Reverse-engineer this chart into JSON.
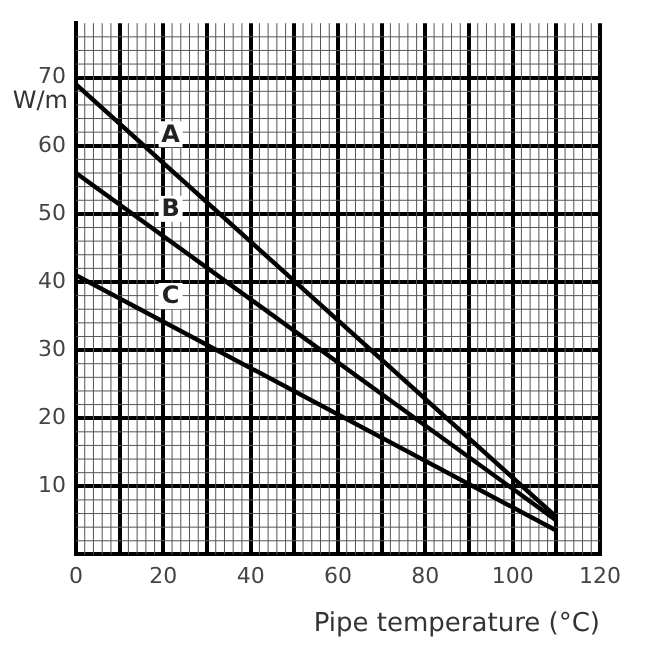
{
  "chart_data": {
    "type": "line",
    "xlabel": "Pipe temperature (°C)",
    "ylabel": "W/m",
    "xlim": [
      0,
      120
    ],
    "ylim": [
      0,
      78
    ],
    "xticks": [
      0,
      {
        "value": 10,
        "label": null
      },
      20,
      {
        "value": 30,
        "label": null
      },
      40,
      {
        "value": 50,
        "label": null
      },
      60,
      {
        "value": 70,
        "label": null
      },
      80,
      {
        "value": 90,
        "label": null
      },
      100,
      {
        "value": 110,
        "label": null
      },
      120
    ],
    "yticks": [
      {
        "value": 0,
        "label": null
      },
      10,
      20,
      30,
      40,
      50,
      60,
      70
    ],
    "grid": true,
    "legend": false,
    "marker": "none",
    "line_style": "solid",
    "x": [
      0,
      110
    ],
    "series": [
      {
        "name": "A",
        "color": "#000000",
        "values": [
          69,
          5.5
        ]
      },
      {
        "name": "B",
        "color": "#000000",
        "values": [
          56,
          5
        ]
      },
      {
        "name": "C",
        "color": "#000000",
        "values": [
          41,
          3.5
        ]
      }
    ]
  }
}
